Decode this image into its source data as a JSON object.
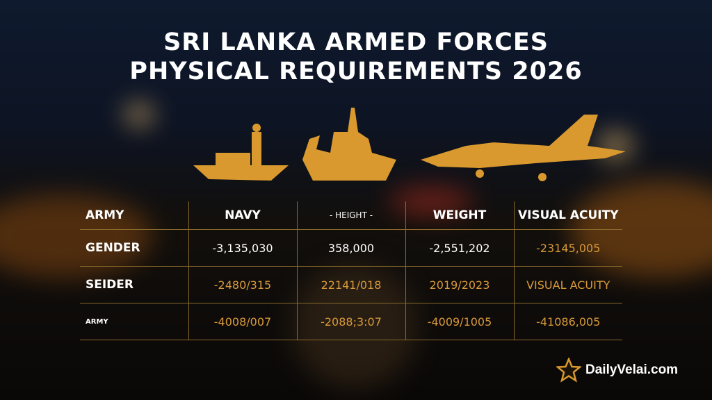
{
  "title": {
    "line1": "SRI LANKA ARMED FORCES",
    "line2": "PHYSICAL REQUIREMENTS 2026"
  },
  "table": {
    "headers": [
      "ARMY",
      "NAVY",
      "- HEIGHT -",
      "WEIGHT",
      "VISUAL ACUITY"
    ],
    "rows": [
      {
        "label": "GENDER",
        "cells": [
          "-3,135,030",
          "358,000",
          "-2,551,202",
          "-23145,005"
        ]
      },
      {
        "label": "SEIDER",
        "cells": [
          "-2480/315",
          "22141/018",
          "2019/2023",
          "VISUAL ACUITY"
        ]
      },
      {
        "label": "ARMY",
        "cells": [
          "-4008/007",
          "-2088;3:07",
          "-4009/1005",
          "-41086,005"
        ]
      }
    ]
  },
  "brand": {
    "name": "DailyVelai.com",
    "icon": "star-icon"
  },
  "colors": {
    "accent": "#d99a3a",
    "line": "#8a6a2a",
    "text": "#ffffff"
  }
}
